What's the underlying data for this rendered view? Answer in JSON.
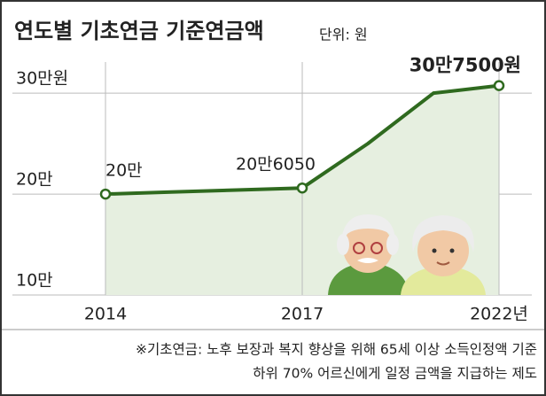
{
  "chart_data": {
    "type": "line",
    "title": "연도별 기초연금 기준연금액",
    "subtitle": "단위: 원",
    "categories": [
      "2014",
      null,
      null,
      "2017",
      null,
      null,
      "2022년"
    ],
    "series": [
      {
        "name": "기준연금액",
        "color": "#2f6a1f",
        "values": [
          200000,
          202000,
          204000,
          206050,
          250000,
          300000,
          307500
        ],
        "value_labels": [
          "20만",
          null,
          null,
          "20만6050",
          null,
          null,
          "30만7500원"
        ]
      }
    ],
    "ylim": [
      100000,
      330000
    ],
    "yticks": [
      {
        "value": 100000,
        "label": "10만"
      },
      {
        "value": 200000,
        "label": "20만"
      },
      {
        "value": 300000,
        "label": "30만원"
      }
    ],
    "grid": true,
    "footnote": [
      "※기초연금: 노후 보장과 복지 향상을 위해 65세 이상 소득인정액 기준",
      "하위 70% 어르신에게 일정 금액을 지급하는 제도"
    ]
  }
}
